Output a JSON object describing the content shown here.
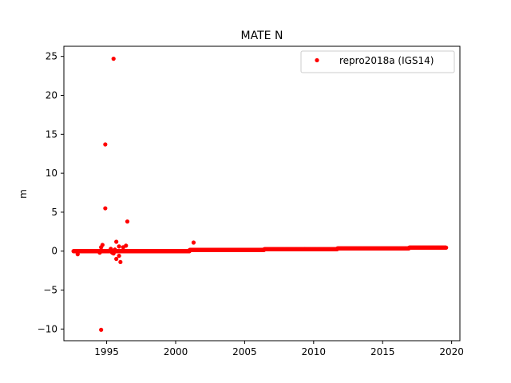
{
  "chart_data": {
    "type": "scatter",
    "title": "MATE N",
    "xlabel": "",
    "ylabel": "m",
    "xlim": [
      1991.9,
      2020.6
    ],
    "ylim": [
      -11.5,
      26.3
    ],
    "xticks": [
      1995,
      2000,
      2005,
      2010,
      2015,
      2020
    ],
    "yticks": [
      -10,
      -5,
      0,
      5,
      10,
      15,
      20,
      25
    ],
    "grid": false,
    "legend_position": "top-right",
    "series": [
      {
        "name": "repro2018a (IGS14)",
        "color": "#ff0000",
        "marker": "circle",
        "trend": {
          "start": 1992.6,
          "end": 2019.6,
          "step": 0.02,
          "segments": [
            {
              "from": 1992.6,
              "to": 2001.0,
              "y": 0.0
            },
            {
              "from": 2001.0,
              "to": 2006.4,
              "y": 0.15
            },
            {
              "from": 2006.4,
              "to": 2011.7,
              "y": 0.25
            },
            {
              "from": 2011.7,
              "to": 2016.9,
              "y": 0.35
            },
            {
              "from": 2016.9,
              "to": 2019.6,
              "y": 0.45
            }
          ]
        },
        "points": [
          {
            "x": 1995.5,
            "y": 24.7
          },
          {
            "x": 1994.9,
            "y": 13.7
          },
          {
            "x": 1994.9,
            "y": 5.5
          },
          {
            "x": 1996.5,
            "y": 3.8
          },
          {
            "x": 2001.3,
            "y": 1.1
          },
          {
            "x": 1995.7,
            "y": 1.2
          },
          {
            "x": 1994.7,
            "y": 0.8
          },
          {
            "x": 1994.6,
            "y": 0.5
          },
          {
            "x": 1995.9,
            "y": 0.6
          },
          {
            "x": 1996.4,
            "y": 0.7
          },
          {
            "x": 1996.2,
            "y": 0.5
          },
          {
            "x": 1995.3,
            "y": 0.3
          },
          {
            "x": 1995.6,
            "y": 0.2
          },
          {
            "x": 1995.4,
            "y": -0.2
          },
          {
            "x": 1995.5,
            "y": -0.3
          },
          {
            "x": 1992.9,
            "y": -0.4
          },
          {
            "x": 1994.5,
            "y": -0.2
          },
          {
            "x": 1995.9,
            "y": -0.6
          },
          {
            "x": 1995.7,
            "y": -1.0
          },
          {
            "x": 1996.0,
            "y": -1.4
          },
          {
            "x": 1994.6,
            "y": -10.1
          }
        ]
      }
    ]
  }
}
